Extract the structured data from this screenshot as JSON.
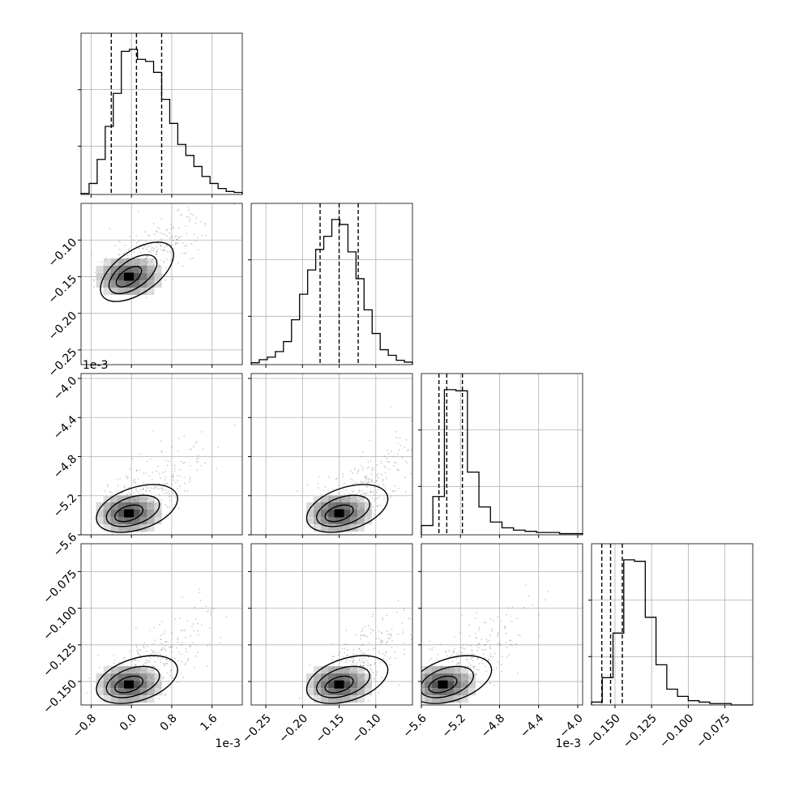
{
  "chart_data": {
    "type": "corner",
    "grid": true,
    "colors": {
      "ink": "#000000",
      "grid": "#b0b0b0",
      "scatter": "#6f6f6f"
    },
    "parameters": [
      {
        "range": [
          -1.0,
          2.2
        ],
        "ticks": [
          "−0.8",
          "0.0",
          "0.8",
          "1.6"
        ],
        "tick_values": [
          -0.8,
          0.0,
          0.8,
          1.6
        ],
        "offset_label": "1e-3",
        "quantiles": [
          -0.4,
          0.1,
          0.6
        ],
        "peak": -0.05
      },
      {
        "range": [
          -0.27,
          -0.05
        ],
        "ticks": [
          "−0.25",
          "−0.20",
          "−0.15",
          "−0.10"
        ],
        "tick_values": [
          -0.25,
          -0.2,
          -0.15,
          -0.1
        ],
        "offset_label": "",
        "quantiles": [
          -0.176,
          -0.15,
          -0.124
        ],
        "peak": -0.15
      },
      {
        "range": [
          -5.6,
          -3.95
        ],
        "ticks": [
          "−5.6",
          "−5.2",
          "−4.8",
          "−4.4",
          "−4.0"
        ],
        "tick_values": [
          -5.6,
          -5.2,
          -4.8,
          -4.4,
          -4.0
        ],
        "offset_label": "1e-3",
        "quantiles": [
          -5.42,
          -5.34,
          -5.18
        ],
        "peak": -5.38
      },
      {
        "range": [
          -0.166,
          -0.056
        ],
        "ticks": [
          "−0.150",
          "−0.125",
          "−0.100",
          "−0.075"
        ],
        "tick_values": [
          -0.15,
          -0.125,
          -0.1,
          -0.075
        ],
        "offset_label": "",
        "quantiles": [
          -0.159,
          -0.153,
          -0.145
        ],
        "peak": -0.152
      }
    ],
    "histograms": [
      [
        1,
        11,
        35,
        68,
        101,
        143,
        145,
        135,
        133,
        122,
        95,
        71,
        50,
        39,
        28,
        18,
        11,
        6,
        3,
        2
      ],
      [
        3,
        8,
        12,
        21,
        37,
        72,
        113,
        152,
        185,
        206,
        233,
        225,
        181,
        138,
        88,
        50,
        24,
        15,
        7,
        4
      ],
      [
        8,
        33,
        125,
        124,
        54,
        24,
        11,
        6,
        4,
        3,
        2,
        2,
        1,
        1
      ],
      [
        2,
        19,
        50,
        101,
        100,
        61,
        28,
        11,
        6,
        3,
        2,
        1,
        1,
        0,
        0
      ]
    ]
  }
}
